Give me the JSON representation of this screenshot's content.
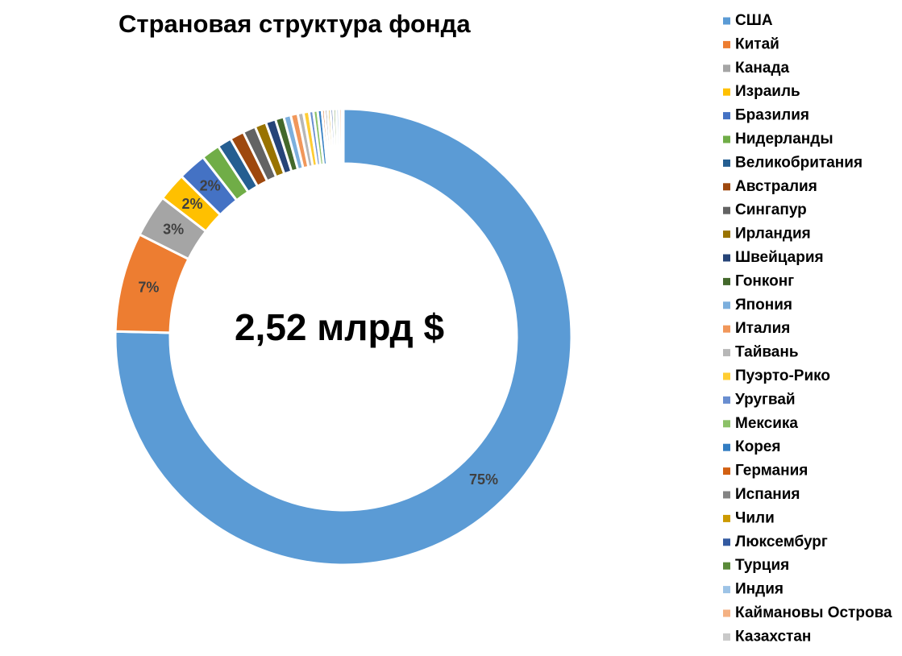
{
  "chart_data": {
    "type": "donut",
    "title": "Страновая структура фонда",
    "center_label": "2,52 млрд $",
    "categories": [
      "США",
      "Китай",
      "Канада",
      "Израиль",
      "Бразилия",
      "Нидерланды",
      "Великобритания",
      "Австралия",
      "Сингапур",
      "Ирландия",
      "Швейцария",
      "Гонконг",
      "Япония",
      "Италия",
      "Тайвань",
      "Пуэрто-Рико",
      "Уругвай",
      "Мексика",
      "Корея",
      "Германия",
      "Испания",
      "Чили",
      "Люксембург",
      "Турция",
      "Индия",
      "Каймановы Острова",
      "Казахстан"
    ],
    "values": [
      75,
      7,
      3,
      2,
      2,
      1.3,
      1,
      1,
      0.9,
      0.8,
      0.7,
      0.6,
      0.5,
      0.5,
      0.4,
      0.4,
      0.3,
      0.3,
      0.3,
      0.2,
      0.2,
      0.2,
      0.2,
      0.2,
      0.2,
      0.2,
      0.1
    ],
    "value_labels": [
      "75%",
      "7%",
      "3%",
      "2%",
      "2%",
      null,
      null,
      null,
      null,
      null,
      null,
      null,
      null,
      null,
      null,
      null,
      null,
      null,
      null,
      null,
      null,
      null,
      null,
      null,
      null,
      null,
      null
    ],
    "colors": [
      "#5b9bd5",
      "#ed7d31",
      "#a5a5a5",
      "#ffc000",
      "#4472c4",
      "#70ad47",
      "#255e91",
      "#9e480e",
      "#636363",
      "#997300",
      "#264478",
      "#43682b",
      "#7cafdd",
      "#f1975a",
      "#b7b7b7",
      "#ffcd33",
      "#698ed0",
      "#8cc168",
      "#327dc2",
      "#d26012",
      "#848484",
      "#cc9a00",
      "#335aa1",
      "#5a8a39",
      "#9dc3e6",
      "#f4b183",
      "#c9c9c9"
    ],
    "legend": "right"
  }
}
